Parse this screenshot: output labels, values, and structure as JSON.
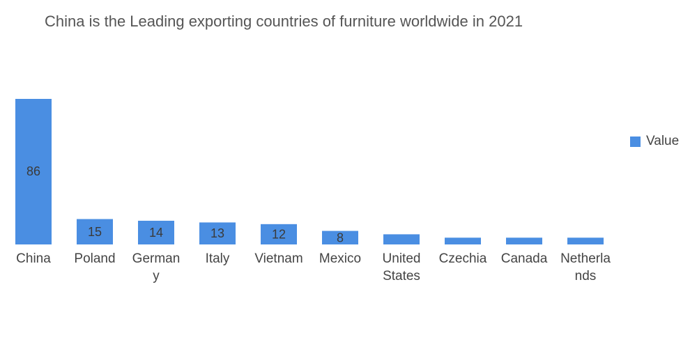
{
  "title": "China is the Leading exporting countries of furniture worldwide in 2021",
  "colors": {
    "bar": "#4a8ee2",
    "text": "#444444"
  },
  "legend": {
    "label": "Value"
  },
  "chart_data": {
    "type": "bar",
    "title": "China is the Leading exporting countries of furniture worldwide in 2021",
    "categories": [
      "China",
      "Poland",
      "Germany",
      "Italy",
      "Vietnam",
      "Mexico",
      "United States",
      "Czechia",
      "Canada",
      "Netherlands"
    ],
    "category_label_lines": [
      [
        "China"
      ],
      [
        "Poland"
      ],
      [
        "German",
        "y"
      ],
      [
        "Italy"
      ],
      [
        "Vietnam"
      ],
      [
        "Mexico"
      ],
      [
        "United",
        "States"
      ],
      [
        "Czechia"
      ],
      [
        "Canada"
      ],
      [
        "Netherla",
        "nds"
      ]
    ],
    "series": [
      {
        "name": "Value",
        "values": [
          86,
          15,
          14,
          13,
          12,
          8,
          6,
          4,
          4,
          4
        ]
      }
    ],
    "data_labels": [
      "86",
      "15",
      "14",
      "13",
      "12",
      "8",
      "",
      "",
      "",
      ""
    ],
    "xlabel": "",
    "ylabel": "",
    "ylim": [
      0,
      86
    ],
    "grid": false,
    "y_axis_visible": false,
    "legend_position": "right"
  }
}
